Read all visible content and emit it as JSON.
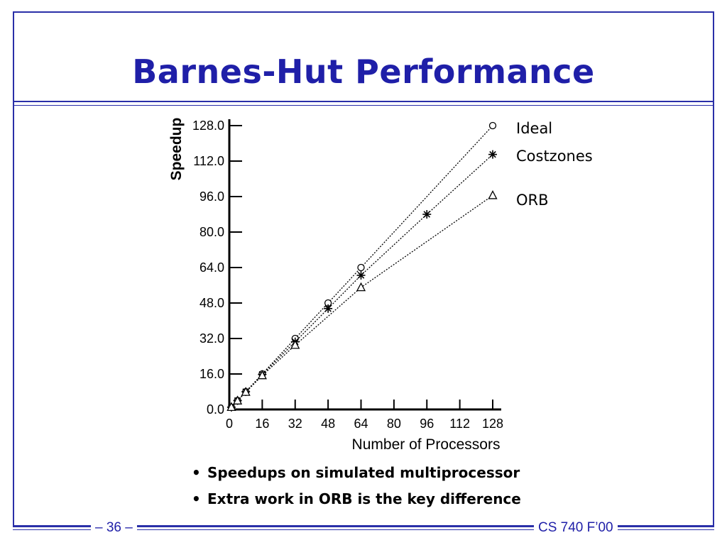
{
  "slide": {
    "title": "Barnes-Hut Performance",
    "bullets": [
      "Speedups on simulated multiprocessor",
      "Extra work in ORB is the key difference"
    ],
    "footer_left": "– 36 –",
    "footer_right": "CS 740 F’00",
    "accent_color": "#1f1fa8"
  },
  "chart_data": {
    "type": "line",
    "xlabel": "Number of Processors",
    "ylabel": "Speedup",
    "xlim": [
      0,
      128
    ],
    "ylim": [
      0,
      128
    ],
    "xticks": [
      "0",
      "16",
      "32",
      "48",
      "64",
      "80",
      "96",
      "112",
      "128"
    ],
    "yticks": [
      "0.0",
      "16.0",
      "32.0",
      "48.0",
      "64.0",
      "80.0",
      "96.0",
      "112.0",
      "128.0"
    ],
    "series": [
      {
        "name": "Ideal",
        "marker": "circle",
        "x": [
          1,
          4,
          8,
          16,
          32,
          48,
          64,
          128
        ],
        "y": [
          1,
          4,
          8,
          16,
          32,
          48,
          64,
          128
        ]
      },
      {
        "name": "Costzones",
        "marker": "asterisk",
        "x": [
          1,
          4,
          8,
          16,
          32,
          48,
          64,
          96,
          128
        ],
        "y": [
          1,
          4,
          8,
          15.8,
          30.5,
          45.5,
          60.5,
          88,
          115
        ]
      },
      {
        "name": "ORB",
        "marker": "triangle",
        "x": [
          1,
          4,
          8,
          16,
          32,
          64,
          128
        ],
        "y": [
          1,
          3.9,
          7.8,
          15.3,
          29,
          55,
          96.5
        ]
      }
    ],
    "legend": "right"
  }
}
